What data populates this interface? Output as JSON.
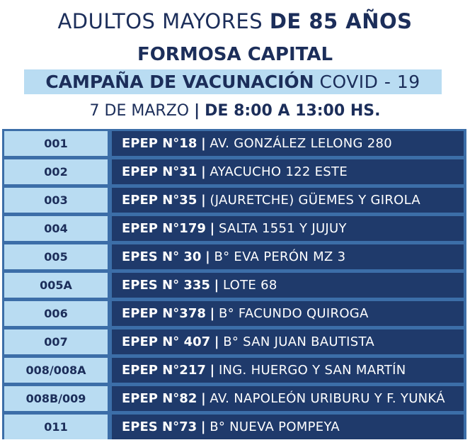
{
  "header": {
    "line1_light": "ADULTOS MAYORES",
    "line1_bold": "DE 85 AÑOS",
    "line2": "FORMOSA CAPITAL",
    "line3_bold": "CAMPAÑA DE VACUNACIÓN",
    "line3_light": "COVID - 19",
    "line4_light": "7 DE MARZO",
    "line4_sep": "|",
    "line4_bold": "DE 8:00 A 13:00 HS."
  },
  "colors": {
    "navy": "#1f3a6b",
    "light_blue": "#b9dcf2",
    "text_navy": "#1c2e5a",
    "table_border": "#3c6ea8"
  },
  "rows": [
    {
      "code": "001",
      "school": "EPEP N°18",
      "sep": "|",
      "address": "AV. GONZÁLEZ LELONG 280"
    },
    {
      "code": "002",
      "school": "EPEP N°31",
      "sep": "|",
      "address": "AYACUCHO 122 ESTE"
    },
    {
      "code": "003",
      "school": "EPEP N°35",
      "sep": "|",
      "address": "(JAURETCHE) GÜEMES Y GIROLA"
    },
    {
      "code": "004",
      "school": "EPEP N°179",
      "sep": "|",
      "address": "SALTA 1551 Y JUJUY"
    },
    {
      "code": "005",
      "school": "EPES N° 30",
      "sep": "|",
      "address": "B° EVA PERÓN MZ 3"
    },
    {
      "code": "005A",
      "school": "EPES N° 335",
      "sep": "|",
      "address": "LOTE 68"
    },
    {
      "code": "006",
      "school": "EPEP N°378",
      "sep": "|",
      "address": "B° FACUNDO QUIROGA"
    },
    {
      "code": "007",
      "school": "EPEP N° 407",
      "sep": "|",
      "address": "B° SAN JUAN BAUTISTA"
    },
    {
      "code": "008/008A",
      "school": "EPEP N°217",
      "sep": "|",
      "address": "ING. HUERGO Y SAN MARTÍN"
    },
    {
      "code": "008B/009",
      "school": "EPEP N°82",
      "sep": "|",
      "address": "AV. NAPOLEÓN URIBURU Y F. YUNKÁ"
    },
    {
      "code": "011",
      "school": "EPES N°73",
      "sep": "|",
      "address": "B° NUEVA POMPEYA"
    }
  ]
}
